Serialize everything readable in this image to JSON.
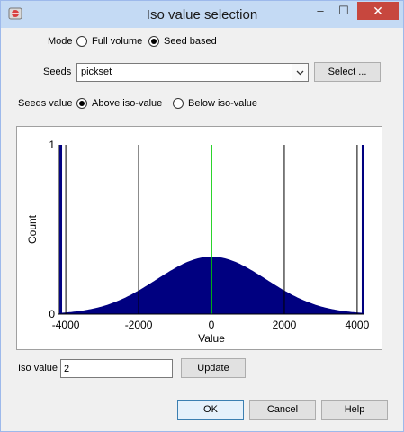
{
  "window": {
    "title": "Iso value selection"
  },
  "titlebar_buttons": {
    "minimize": "–",
    "maximize": "☐",
    "close": "✕"
  },
  "mode": {
    "label": "Mode",
    "options": [
      "Full volume",
      "Seed based"
    ],
    "selected": "Seed based"
  },
  "seeds": {
    "label": "Seeds",
    "value": "pickset",
    "select_button": "Select ..."
  },
  "seeds_value": {
    "label": "Seeds value",
    "options": [
      "Above iso-value",
      "Below iso-value"
    ],
    "selected": "Above iso-value"
  },
  "chart_data": {
    "type": "area",
    "title": "",
    "xlabel": "Value",
    "ylabel": "Count",
    "xlim": [
      -4200,
      4200
    ],
    "ylim": [
      0,
      1
    ],
    "x_ticks": [
      -4000,
      -2000,
      0,
      2000,
      4000
    ],
    "y_ticks": [
      0,
      1
    ],
    "grid": "vertical lines at x ticks",
    "distribution": {
      "shape": "normal",
      "mean": 0,
      "std_dev": 1500,
      "peak_count": 0.34
    },
    "iso_value_marker": 2,
    "colors": {
      "fill": "#000080",
      "marker": "#00cc00",
      "gridline": "#000000"
    }
  },
  "iso_value": {
    "label": "Iso value",
    "value": "2",
    "update_button": "Update"
  },
  "footer": {
    "ok": "OK",
    "cancel": "Cancel",
    "help": "Help"
  }
}
